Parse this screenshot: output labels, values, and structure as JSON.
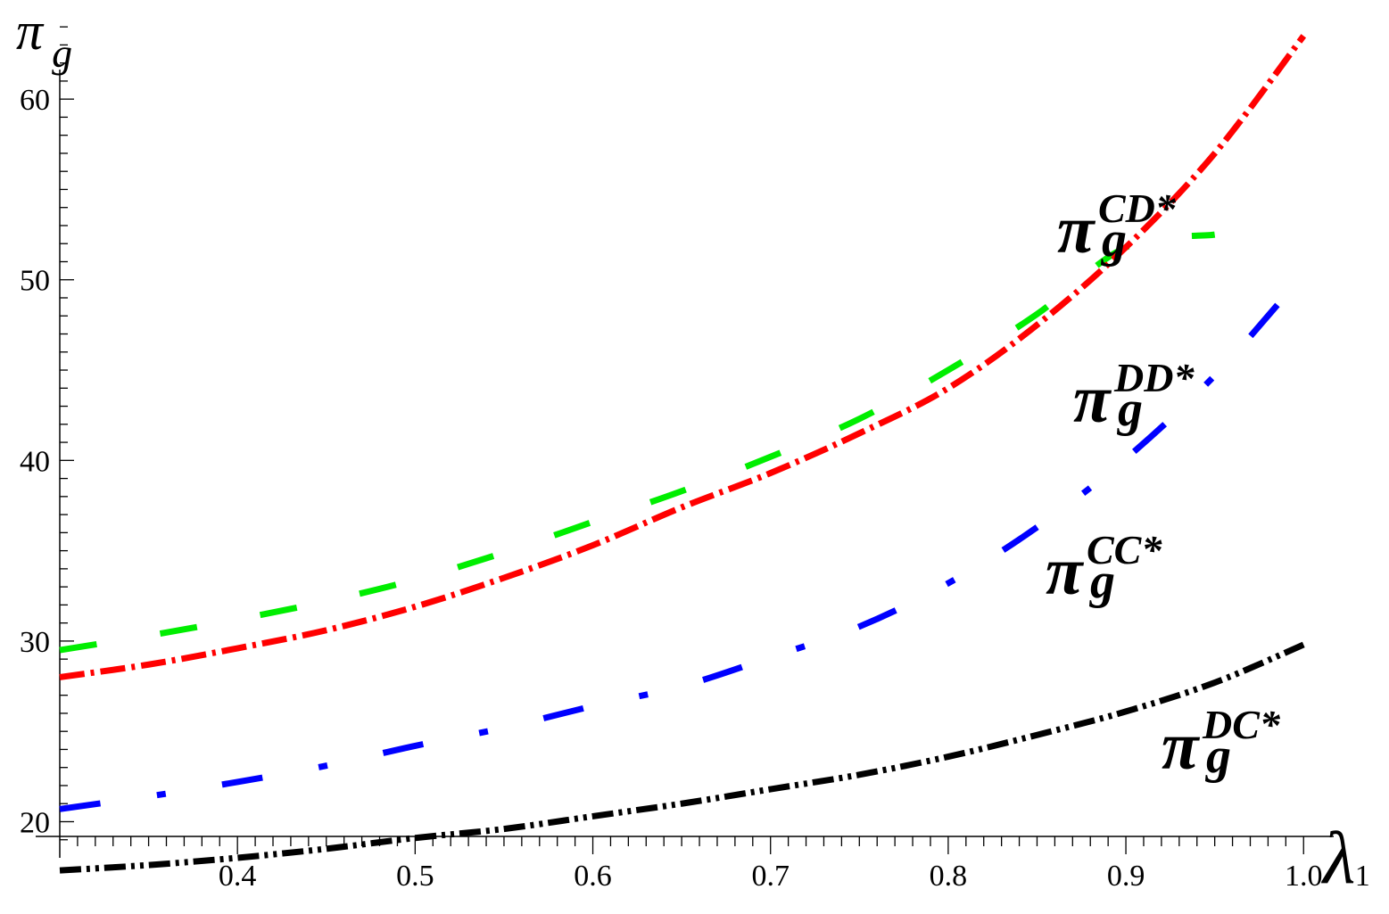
{
  "chart_data": {
    "type": "line",
    "title": "",
    "ylabel": {
      "main": "π",
      "sub": "g"
    },
    "xlabel": "λ",
    "xlim": [
      0.3,
      1.03
    ],
    "ylim": [
      18,
      64.5
    ],
    "x_ticks": [
      {
        "value": 0.4,
        "label": "0.4"
      },
      {
        "value": 0.5,
        "label": "0.5"
      },
      {
        "value": 0.6,
        "label": "0.6"
      },
      {
        "value": 0.7,
        "label": "0.7"
      },
      {
        "value": 0.8,
        "label": "0.8"
      },
      {
        "value": 0.9,
        "label": "0.9"
      },
      {
        "value": 1.0,
        "label": "1.0"
      }
    ],
    "x_extra_label": {
      "value": 1.0,
      "label": "1"
    },
    "y_ticks": [
      {
        "value": 20,
        "label": "20"
      },
      {
        "value": 30,
        "label": "30"
      },
      {
        "value": 40,
        "label": "40"
      },
      {
        "value": 50,
        "label": "50"
      },
      {
        "value": 60,
        "label": "60"
      }
    ],
    "grid": false,
    "series": [
      {
        "key": "cd",
        "label": {
          "main": "π",
          "sub": "g",
          "sup": "CD*"
        },
        "color": "#ff0000",
        "dash": "dash-dot",
        "x": [
          0.3,
          0.35,
          0.4,
          0.45,
          0.5,
          0.55,
          0.6,
          0.65,
          0.7,
          0.75,
          0.8,
          0.85,
          0.9,
          0.95,
          1.0
        ],
        "y": [
          28.0,
          28.7,
          29.6,
          30.6,
          31.9,
          33.5,
          35.3,
          37.4,
          39.3,
          41.5,
          44.0,
          47.5,
          51.8,
          57.0,
          63.5
        ]
      },
      {
        "key": "dd",
        "label": {
          "main": "π",
          "sub": "g",
          "sup": "DD*"
        },
        "color": "#00ee00",
        "dash": "long-dash",
        "x": [
          0.3,
          0.35,
          0.4,
          0.45,
          0.5,
          0.55,
          0.6,
          0.65,
          0.7,
          0.75,
          0.8,
          0.85,
          0.9,
          0.95
        ],
        "y": [
          29.5,
          30.3,
          31.2,
          32.2,
          33.4,
          34.9,
          36.6,
          38.3,
          40.2,
          42.3,
          45.0,
          48.1,
          51.8,
          52.5
        ]
      },
      {
        "key": "cc",
        "label": {
          "main": "π",
          "sub": "g",
          "sup": "CC*"
        },
        "color": "#0000ff",
        "dash": "dash-dot",
        "x": [
          0.3,
          0.35,
          0.4,
          0.45,
          0.5,
          0.55,
          0.6,
          0.65,
          0.7,
          0.75,
          0.8,
          0.85,
          0.9,
          0.95,
          1.0
        ],
        "y": [
          20.7,
          21.4,
          22.2,
          23.1,
          24.2,
          25.2,
          26.4,
          27.5,
          29.1,
          30.8,
          33.2,
          36.3,
          40.1,
          44.7,
          50.3
        ]
      },
      {
        "key": "dc",
        "label": {
          "main": "π",
          "sub": "g",
          "sup": "DC*"
        },
        "color": "#000000",
        "dash": "dash-dot-dot",
        "x": [
          0.3,
          0.35,
          0.4,
          0.45,
          0.5,
          0.55,
          0.6,
          0.65,
          0.7,
          0.75,
          0.8,
          0.85,
          0.9,
          0.95,
          1.0
        ],
        "y": [
          17.3,
          17.6,
          18.0,
          18.5,
          19.1,
          19.6,
          20.3,
          21.0,
          21.8,
          22.6,
          23.6,
          24.8,
          26.1,
          27.7,
          29.8
        ]
      }
    ]
  }
}
